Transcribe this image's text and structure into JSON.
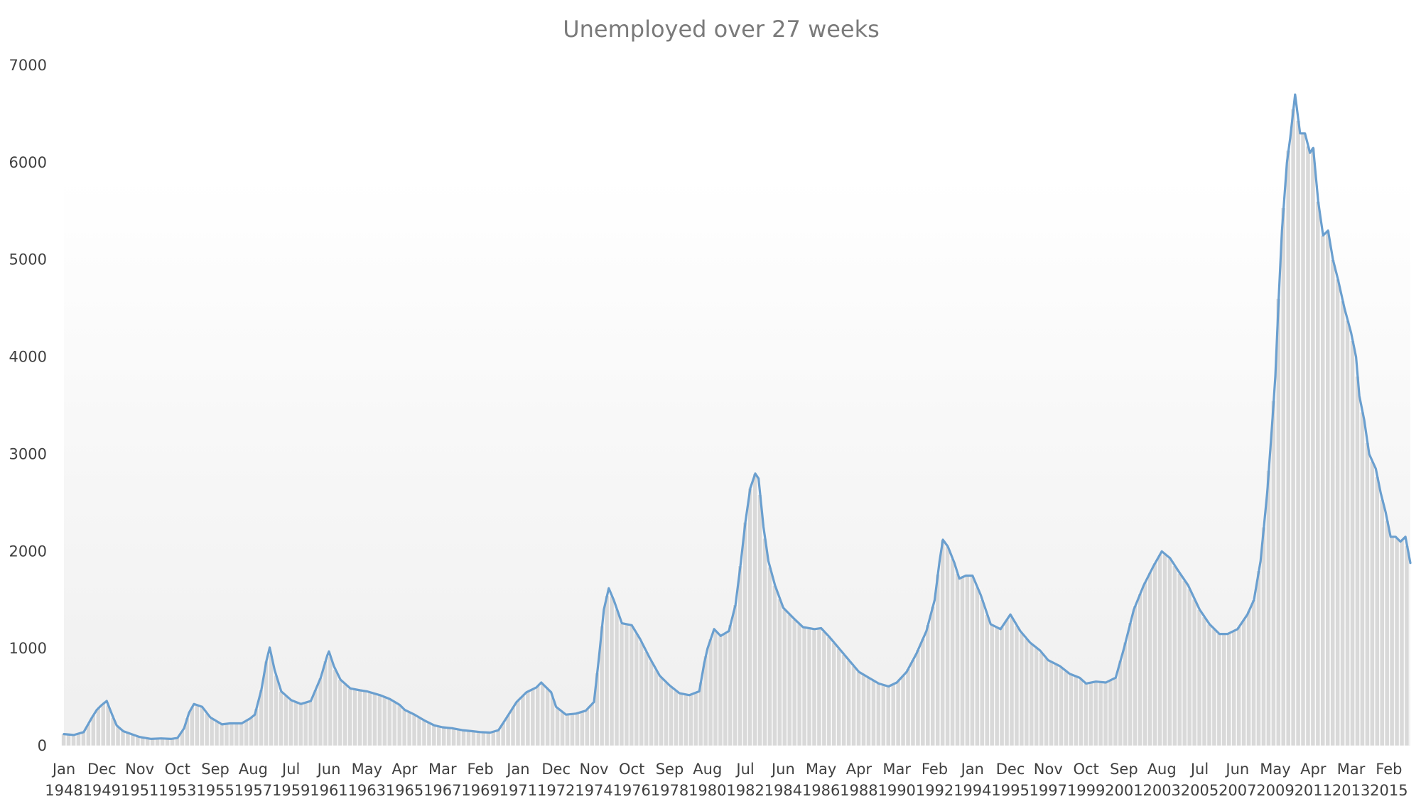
{
  "chart_data": {
    "type": "area",
    "title": "Unemployed over 27 weeks",
    "xlabel": "",
    "ylabel": "",
    "ylim": [
      0,
      7000
    ],
    "yticks": [
      "0",
      "1000",
      "2000",
      "3000",
      "4000",
      "5000",
      "6000",
      "7000"
    ],
    "grid": false,
    "legend": "none",
    "colors": {
      "line": "#6a9fcf",
      "bars": "#d9d9d9",
      "bar_edge": "#ffffff"
    },
    "x_tick_labels": [
      {
        "month": "Jan",
        "year": "1948"
      },
      {
        "month": "Dec",
        "year": "1949"
      },
      {
        "month": "Nov",
        "year": "1951"
      },
      {
        "month": "Oct",
        "year": "1953"
      },
      {
        "month": "Sep",
        "year": "1955"
      },
      {
        "month": "Aug",
        "year": "1957"
      },
      {
        "month": "Jul",
        "year": "1959"
      },
      {
        "month": "Jun",
        "year": "1961"
      },
      {
        "month": "May",
        "year": "1963"
      },
      {
        "month": "Apr",
        "year": "1965"
      },
      {
        "month": "Mar",
        "year": "1967"
      },
      {
        "month": "Feb",
        "year": "1969"
      },
      {
        "month": "Jan",
        "year": "1971"
      },
      {
        "month": "Dec",
        "year": "1972"
      },
      {
        "month": "Nov",
        "year": "1974"
      },
      {
        "month": "Oct",
        "year": "1976"
      },
      {
        "month": "Sep",
        "year": "1978"
      },
      {
        "month": "Aug",
        "year": "1980"
      },
      {
        "month": "Jul",
        "year": "1982"
      },
      {
        "month": "Jun",
        "year": "1984"
      },
      {
        "month": "May",
        "year": "1986"
      },
      {
        "month": "Apr",
        "year": "1988"
      },
      {
        "month": "Mar",
        "year": "1990"
      },
      {
        "month": "Feb",
        "year": "1992"
      },
      {
        "month": "Jan",
        "year": "1994"
      },
      {
        "month": "Dec",
        "year": "1995"
      },
      {
        "month": "Nov",
        "year": "1997"
      },
      {
        "month": "Oct",
        "year": "1999"
      },
      {
        "month": "Sep",
        "year": "2001"
      },
      {
        "month": "Aug",
        "year": "2003"
      },
      {
        "month": "Jul",
        "year": "2005"
      },
      {
        "month": "Jun",
        "year": "2007"
      },
      {
        "month": "May",
        "year": "2009"
      },
      {
        "month": "Apr",
        "year": "2011"
      },
      {
        "month": "Mar",
        "year": "2013"
      },
      {
        "month": "Feb",
        "year": "2015"
      }
    ],
    "x_start": "1948-01",
    "x_end": "2016-03",
    "series": [
      {
        "values": [
          [
            "1948-01",
            120
          ],
          [
            "1948-07",
            110
          ],
          [
            "1949-01",
            140
          ],
          [
            "1949-06",
            290
          ],
          [
            "1949-09",
            370
          ],
          [
            "1949-12",
            420
          ],
          [
            "1950-03",
            460
          ],
          [
            "1950-06",
            330
          ],
          [
            "1950-09",
            210
          ],
          [
            "1951-01",
            150
          ],
          [
            "1951-06",
            120
          ],
          [
            "1951-11",
            90
          ],
          [
            "1952-06",
            70
          ],
          [
            "1952-12",
            75
          ],
          [
            "1953-06",
            70
          ],
          [
            "1953-10",
            80
          ],
          [
            "1954-02",
            180
          ],
          [
            "1954-05",
            340
          ],
          [
            "1954-08",
            430
          ],
          [
            "1955-01",
            400
          ],
          [
            "1955-06",
            290
          ],
          [
            "1955-09",
            260
          ],
          [
            "1956-01",
            220
          ],
          [
            "1956-06",
            230
          ],
          [
            "1957-01",
            230
          ],
          [
            "1957-06",
            280
          ],
          [
            "1957-09",
            320
          ],
          [
            "1958-01",
            580
          ],
          [
            "1958-04",
            870
          ],
          [
            "1958-06",
            1010
          ],
          [
            "1958-09",
            780
          ],
          [
            "1959-01",
            560
          ],
          [
            "1959-07",
            470
          ],
          [
            "1960-01",
            430
          ],
          [
            "1960-07",
            460
          ],
          [
            "1961-01",
            700
          ],
          [
            "1961-05",
            930
          ],
          [
            "1961-06",
            970
          ],
          [
            "1961-09",
            820
          ],
          [
            "1962-01",
            680
          ],
          [
            "1962-07",
            590
          ],
          [
            "1963-01",
            570
          ],
          [
            "1963-05",
            560
          ],
          [
            "1964-01",
            520
          ],
          [
            "1964-07",
            480
          ],
          [
            "1965-01",
            420
          ],
          [
            "1965-04",
            370
          ],
          [
            "1965-10",
            320
          ],
          [
            "1966-04",
            260
          ],
          [
            "1966-10",
            210
          ],
          [
            "1967-03",
            190
          ],
          [
            "1967-09",
            180
          ],
          [
            "1968-03",
            160
          ],
          [
            "1968-09",
            150
          ],
          [
            "1969-02",
            140
          ],
          [
            "1969-08",
            135
          ],
          [
            "1970-01",
            160
          ],
          [
            "1970-06",
            290
          ],
          [
            "1970-12",
            450
          ],
          [
            "1971-06",
            550
          ],
          [
            "1971-12",
            600
          ],
          [
            "1972-03",
            650
          ],
          [
            "1972-09",
            550
          ],
          [
            "1972-12",
            400
          ],
          [
            "1973-06",
            320
          ],
          [
            "1973-12",
            330
          ],
          [
            "1974-06",
            360
          ],
          [
            "1974-11",
            450
          ],
          [
            "1975-02",
            900
          ],
          [
            "1975-05",
            1400
          ],
          [
            "1975-08",
            1620
          ],
          [
            "1975-11",
            1500
          ],
          [
            "1976-04",
            1260
          ],
          [
            "1976-10",
            1240
          ],
          [
            "1977-03",
            1100
          ],
          [
            "1977-09",
            900
          ],
          [
            "1978-03",
            720
          ],
          [
            "1978-09",
            620
          ],
          [
            "1979-03",
            540
          ],
          [
            "1979-09",
            520
          ],
          [
            "1980-03",
            560
          ],
          [
            "1980-06",
            850
          ],
          [
            "1980-08",
            1000
          ],
          [
            "1980-12",
            1200
          ],
          [
            "1981-04",
            1130
          ],
          [
            "1981-09",
            1180
          ],
          [
            "1982-01",
            1450
          ],
          [
            "1982-04",
            1850
          ],
          [
            "1982-07",
            2300
          ],
          [
            "1982-10",
            2650
          ],
          [
            "1983-01",
            2800
          ],
          [
            "1983-03",
            2750
          ],
          [
            "1983-06",
            2250
          ],
          [
            "1983-09",
            1900
          ],
          [
            "1984-01",
            1650
          ],
          [
            "1984-06",
            1420
          ],
          [
            "1985-01",
            1300
          ],
          [
            "1985-06",
            1220
          ],
          [
            "1986-01",
            1200
          ],
          [
            "1986-05",
            1210
          ],
          [
            "1986-10",
            1120
          ],
          [
            "1987-04",
            1000
          ],
          [
            "1987-10",
            880
          ],
          [
            "1988-04",
            760
          ],
          [
            "1988-10",
            700
          ],
          [
            "1989-04",
            640
          ],
          [
            "1989-10",
            610
          ],
          [
            "1990-03",
            650
          ],
          [
            "1990-09",
            760
          ],
          [
            "1991-03",
            950
          ],
          [
            "1991-09",
            1180
          ],
          [
            "1992-02",
            1500
          ],
          [
            "1992-05",
            1900
          ],
          [
            "1992-07",
            2120
          ],
          [
            "1992-10",
            2050
          ],
          [
            "1993-02",
            1880
          ],
          [
            "1993-05",
            1720
          ],
          [
            "1993-09",
            1750
          ],
          [
            "1994-01",
            1750
          ],
          [
            "1994-06",
            1550
          ],
          [
            "1994-12",
            1250
          ],
          [
            "1995-06",
            1200
          ],
          [
            "1995-12",
            1350
          ],
          [
            "1996-06",
            1180
          ],
          [
            "1996-12",
            1060
          ],
          [
            "1997-06",
            980
          ],
          [
            "1997-11",
            880
          ],
          [
            "1998-06",
            820
          ],
          [
            "1998-12",
            740
          ],
          [
            "1999-06",
            700
          ],
          [
            "1999-10",
            640
          ],
          [
            "2000-04",
            660
          ],
          [
            "2000-10",
            650
          ],
          [
            "2001-04",
            700
          ],
          [
            "2001-09",
            1000
          ],
          [
            "2002-03",
            1400
          ],
          [
            "2002-09",
            1650
          ],
          [
            "2003-03",
            1850
          ],
          [
            "2003-08",
            2000
          ],
          [
            "2004-01",
            1930
          ],
          [
            "2004-06",
            1800
          ],
          [
            "2004-12",
            1650
          ],
          [
            "2005-07",
            1400
          ],
          [
            "2006-01",
            1250
          ],
          [
            "2006-07",
            1150
          ],
          [
            "2006-12",
            1150
          ],
          [
            "2007-06",
            1200
          ],
          [
            "2007-12",
            1350
          ],
          [
            "2008-04",
            1500
          ],
          [
            "2008-08",
            1900
          ],
          [
            "2008-12",
            2600
          ],
          [
            "2009-03",
            3300
          ],
          [
            "2009-05",
            3800
          ],
          [
            "2009-07",
            4600
          ],
          [
            "2009-09",
            5300
          ],
          [
            "2009-12",
            6000
          ],
          [
            "2010-02",
            6250
          ],
          [
            "2010-05",
            6700
          ],
          [
            "2010-08",
            6300
          ],
          [
            "2010-11",
            6300
          ],
          [
            "2011-02",
            6100
          ],
          [
            "2011-04",
            6150
          ],
          [
            "2011-07",
            5600
          ],
          [
            "2011-10",
            5250
          ],
          [
            "2012-01",
            5300
          ],
          [
            "2012-04",
            5000
          ],
          [
            "2012-07",
            4800
          ],
          [
            "2012-11",
            4500
          ],
          [
            "2013-03",
            4250
          ],
          [
            "2013-06",
            4000
          ],
          [
            "2013-08",
            3600
          ],
          [
            "2013-11",
            3350
          ],
          [
            "2014-02",
            3000
          ],
          [
            "2014-06",
            2850
          ],
          [
            "2014-09",
            2600
          ],
          [
            "2014-12",
            2400
          ],
          [
            "2015-03",
            2150
          ],
          [
            "2015-06",
            2150
          ],
          [
            "2015-09",
            2100
          ],
          [
            "2015-12",
            2150
          ],
          [
            "2016-03",
            1880
          ]
        ]
      }
    ]
  }
}
